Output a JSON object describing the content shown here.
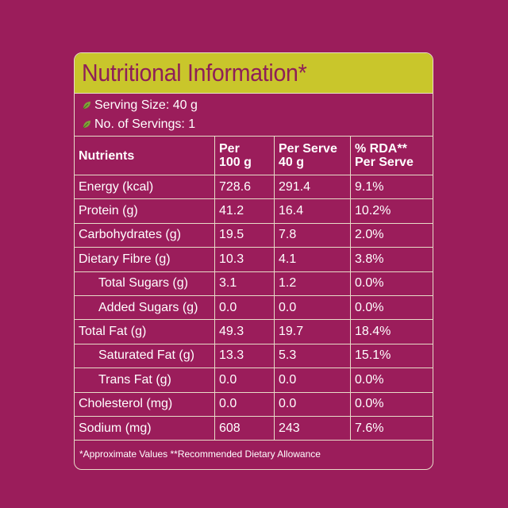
{
  "header": {
    "title": "Nutritional Information*"
  },
  "serving": {
    "size": "Serving Size: 40 g",
    "count": "No. of Servings: 1",
    "icon": "leaf-icon"
  },
  "table": {
    "headers": [
      "Nutrients",
      "Per\n100 g",
      "Per Serve\n40 g",
      "% RDA**\nPer Serve"
    ],
    "rows": [
      [
        "Energy (kcal)",
        "728.6",
        "291.4",
        "9.1%"
      ],
      [
        "Protein (g)",
        "41.2",
        "16.4",
        "10.2%"
      ],
      [
        "Carbohydrates (g)",
        "19.5",
        "7.8",
        "2.0%"
      ],
      [
        "Dietary Fibre (g)",
        "10.3",
        "4.1",
        "3.8%"
      ],
      [
        "Total Sugars (g)",
        "3.1",
        "1.2",
        "0.0%"
      ],
      [
        "Added Sugars (g)",
        "0.0",
        "0.0",
        "0.0%"
      ],
      [
        "Total Fat (g)",
        "49.3",
        "19.7",
        "18.4%"
      ],
      [
        "Saturated Fat (g)",
        "13.3",
        "5.3",
        "15.1%"
      ],
      [
        "Trans Fat (g)",
        "0.0",
        "0.0",
        "0.0%"
      ],
      [
        "Cholesterol (mg)",
        "0.0",
        "0.0",
        "0.0%"
      ],
      [
        "Sodium (mg)",
        "608",
        "243",
        "7.6%"
      ]
    ]
  },
  "footnote": "*Approximate Values  **Recommended Dietary Allowance",
  "colors": {
    "background": "#9b1d5b",
    "title_bar": "#c9c62b",
    "title_text": "#8e1f58",
    "leaf": "#7fa43a"
  }
}
